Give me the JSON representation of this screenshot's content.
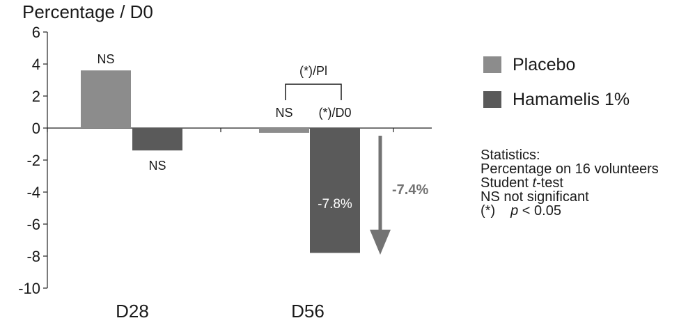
{
  "chart_data": {
    "type": "bar",
    "ylabel": "Percentage / D0",
    "ylim": [
      -10,
      6
    ],
    "yticks": [
      6,
      4,
      2,
      0,
      -2,
      -4,
      -6,
      -8,
      -10
    ],
    "categories": [
      "D28",
      "D56"
    ],
    "series": [
      {
        "name": "Placebo",
        "color": "#8c8c8c",
        "values": [
          3.6,
          -0.3
        ],
        "labels": [
          "NS",
          "NS"
        ]
      },
      {
        "name": "Hamamelis 1%",
        "color": "#5a5a5a",
        "values": [
          -1.4,
          -7.8
        ],
        "labels": [
          "NS",
          "(*)/D0"
        ]
      }
    ],
    "bar_value_label": "-7.8%",
    "comparison_label": "(*)/Pl",
    "difference_label": "-7.4%",
    "difference_color": "#737373"
  },
  "stats": {
    "line1": "Statistics:",
    "line2": "Percentage on 16 volunteers",
    "line3_pre": "Student ",
    "line3_italic": "t",
    "line3_post": "-test",
    "line4": "NS not significant",
    "line5_pre": "(*)",
    "line5_italic": "p",
    "line5_post": " < 0.05"
  }
}
